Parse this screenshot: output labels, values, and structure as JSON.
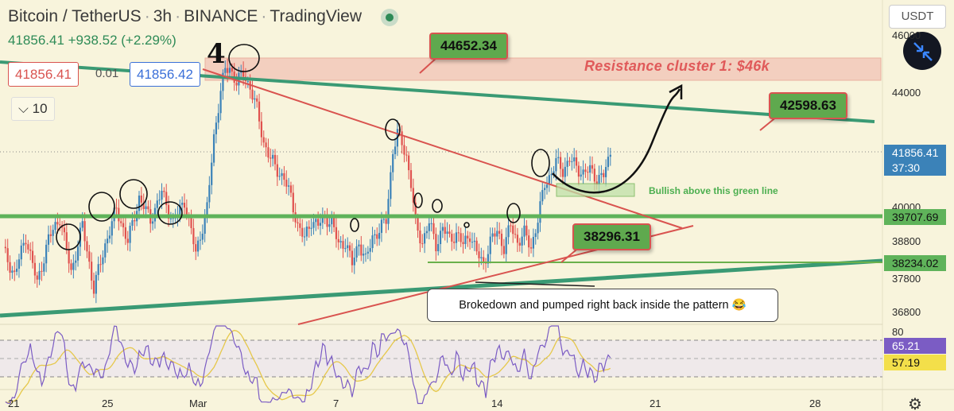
{
  "header": {
    "symbol": "Bitcoin / TetherUS",
    "interval": "3h",
    "exchange": "BINANCE",
    "source": "TradingView",
    "quote": "41856.41 +938.52 (+2.29%)",
    "sell_price": "41856.41",
    "spread": "0.01",
    "buy_price": "41856.42",
    "indicator_toggle": "10",
    "currency_button": "USDT"
  },
  "annotations": {
    "wave_label": "4",
    "price_tag_top": "44652.34",
    "price_tag_right": "42598.63",
    "price_tag_mid": "38296.31",
    "resistance": "Resistance cluster 1: $46k",
    "bullish": "Bullish above this green line",
    "callout": "Brokedown and pumped right back inside the pattern 😂"
  },
  "axis_labels": {
    "last_price": "41856.41",
    "countdown": "37:30",
    "green_line_1": "39707.69",
    "green_line_2": "38234.02",
    "rsi": "65.21",
    "rsi_ma": "57.19"
  },
  "colors": {
    "background": "#f8f4dc",
    "up": "#3b82b8",
    "down": "#e0514e",
    "trendline_green": "#3a9a74",
    "trendline_red": "#d9534f",
    "support_green": "#5fb35a",
    "rsi_line": "#7b5cc4",
    "rsi_ma": "#e6c84a"
  },
  "chart_data": {
    "type": "candlestick",
    "title": "Bitcoin / TetherUS, 3h, BINANCE",
    "x_ticks": [
      "21",
      "25",
      "Mar",
      "7",
      "14",
      "21",
      "28"
    ],
    "y_ticks": [
      46000,
      44000,
      40000,
      38800,
      37800,
      36800
    ],
    "ylim": [
      35800,
      46400
    ],
    "rsi_ticks": [
      80
    ],
    "last_price": 41856.41,
    "support_levels": [
      39707.69,
      38234.02
    ],
    "resistance_zone": [
      45400,
      46200
    ],
    "price_path": [
      [
        0,
        38400
      ],
      [
        5,
        37500
      ],
      [
        10,
        38900
      ],
      [
        15,
        37200
      ],
      [
        20,
        38800
      ],
      [
        25,
        39600
      ],
      [
        30,
        37600
      ],
      [
        35,
        39300
      ],
      [
        40,
        37000
      ],
      [
        45,
        38600
      ],
      [
        50,
        39900
      ],
      [
        55,
        38700
      ],
      [
        60,
        40300
      ],
      [
        65,
        39500
      ],
      [
        70,
        40500
      ],
      [
        75,
        39400
      ],
      [
        80,
        40200
      ],
      [
        85,
        38300
      ],
      [
        90,
        39900
      ],
      [
        93,
        42500
      ],
      [
        96,
        44200
      ],
      [
        98,
        44900
      ],
      [
        100,
        45000
      ],
      [
        103,
        44500
      ],
      [
        106,
        44800
      ],
      [
        109,
        44300
      ],
      [
        112,
        43500
      ],
      [
        115,
        42300
      ],
      [
        118,
        41700
      ],
      [
        121,
        41300
      ],
      [
        124,
        41000
      ],
      [
        127,
        40300
      ],
      [
        130,
        39300
      ],
      [
        133,
        38800
      ],
      [
        136,
        39500
      ],
      [
        139,
        39300
      ],
      [
        142,
        39600
      ],
      [
        145,
        39400
      ],
      [
        148,
        38600
      ],
      [
        151,
        38700
      ],
      [
        154,
        37900
      ],
      [
        157,
        38700
      ],
      [
        160,
        38000
      ],
      [
        163,
        38900
      ],
      [
        166,
        39100
      ],
      [
        169,
        39500
      ],
      [
        172,
        42000
      ],
      [
        174,
        42600
      ],
      [
        176,
        42300
      ],
      [
        178,
        41800
      ],
      [
        180,
        40800
      ],
      [
        182,
        39300
      ],
      [
        185,
        38700
      ],
      [
        188,
        39400
      ],
      [
        191,
        38600
      ],
      [
        194,
        39200
      ],
      [
        197,
        38800
      ],
      [
        200,
        39000
      ],
      [
        203,
        38600
      ],
      [
        206,
        39000
      ],
      [
        209,
        38300
      ],
      [
        212,
        37900
      ],
      [
        215,
        38700
      ],
      [
        218,
        39100
      ],
      [
        221,
        38500
      ],
      [
        224,
        39300
      ],
      [
        227,
        38700
      ],
      [
        230,
        39000
      ],
      [
        233,
        38500
      ],
      [
        236,
        39500
      ],
      [
        239,
        40800
      ],
      [
        242,
        41200
      ],
      [
        244,
        41600
      ],
      [
        247,
        41300
      ],
      [
        250,
        41700
      ],
      [
        253,
        41400
      ],
      [
        256,
        41200
      ],
      [
        259,
        41300
      ],
      [
        262,
        41000
      ],
      [
        265,
        41100
      ],
      [
        268,
        41856
      ]
    ]
  }
}
